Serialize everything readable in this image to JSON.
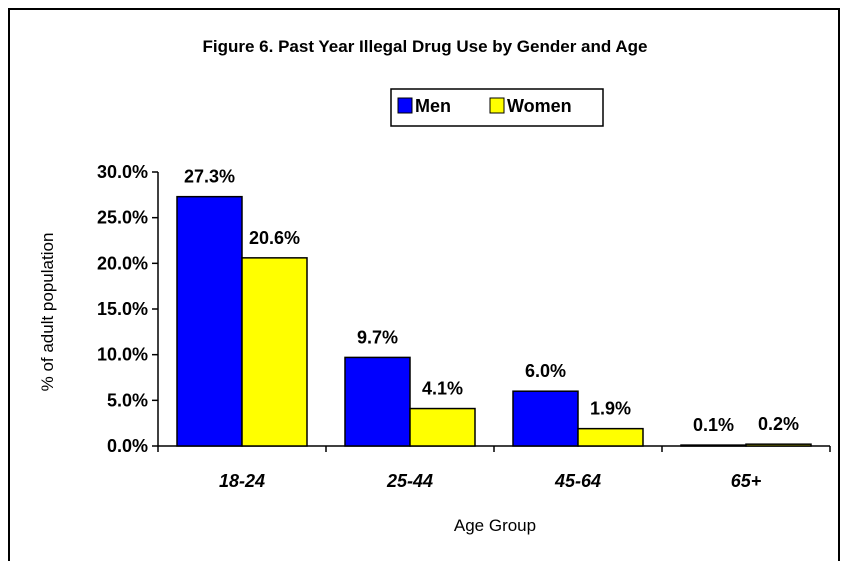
{
  "chart_data": {
    "type": "bar",
    "title": "Figure 6.  Past Year Illegal Drug Use by Gender and Age",
    "xlabel": "Age Group",
    "ylabel": "% of adult population",
    "categories": [
      "18-24",
      "25-44",
      "45-64",
      "65+"
    ],
    "series": [
      {
        "name": "Men",
        "values": [
          27.3,
          9.7,
          6.0,
          0.1
        ],
        "labels": [
          "27.3%",
          "9.7%",
          "6.0%",
          "0.1%"
        ]
      },
      {
        "name": "Women",
        "values": [
          20.6,
          4.1,
          1.9,
          0.2
        ],
        "labels": [
          "20.6%",
          "4.1%",
          "1.9%",
          "0.2%"
        ]
      }
    ],
    "ylim": [
      0,
      30
    ],
    "yticks": [
      "0.0%",
      "5.0%",
      "10.0%",
      "15.0%",
      "20.0%",
      "25.0%",
      "30.0%"
    ],
    "grid": false,
    "legend_position": "top-center"
  },
  "colors": {
    "Men": "#0000ff",
    "Women": "#ffff00"
  }
}
